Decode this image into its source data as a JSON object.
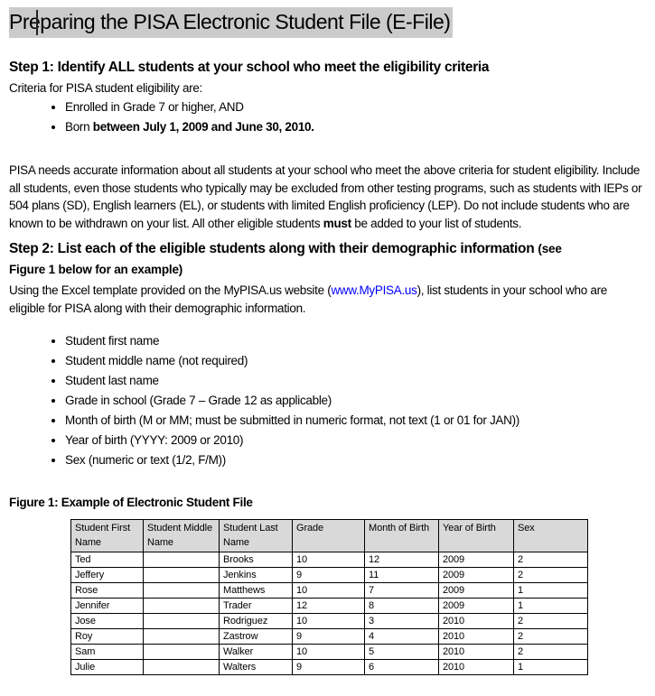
{
  "colors": {
    "selection_highlight": "#cbcbcb",
    "link": "#0000ff",
    "table_header_bg": "#d9d9d9",
    "table_border": "#000000"
  },
  "title": "Preparing the PISA Electronic Student File (E-File)",
  "step1": {
    "heading": "Step 1: Identify ALL students at your school who meet the eligibility criteria",
    "intro": "Criteria for PISA student eligibility are:",
    "bullet1": "Enrolled in Grade 7 or higher, AND",
    "bullet2_pre": "Born ",
    "bullet2_bold": "between July 1, 2009 and June 30, 2010.",
    "para_pre": "PISA needs accurate information about all students at your school who meet the above criteria for student eligibility. Include all students, even those students who typically may be excluded from other testing programs, such as students with IEPs or 504 plans (SD), English learners (EL), or students with limited English proficiency (LEP). Do not include students who are known to be withdrawn on your list. All other eligible students ",
    "para_bold": "must",
    "para_post": " be added to your list of students."
  },
  "step2": {
    "heading_main": "Step 2: List each of the eligible students along with their demographic information",
    "heading_small_line1": "(see",
    "heading_small_line2": "Figure 1 below for an example)",
    "para_pre": "Using the Excel template provided on the MyPISA.us website (",
    "link_text": "www.MyPISA.us",
    "para_post": "), list students in your school who are eligible for PISA along with their demographic information.",
    "bullets": [
      "Student first name",
      "Student middle name (not required)",
      "Student last name",
      "Grade in school (Grade 7 – Grade 12 as applicable)",
      "Month of birth (M or MM; must be submitted in numeric format, not text (1 or 01 for JAN))",
      "Year of birth (YYYY: 2009 or 2010)",
      "Sex (numeric or text (1/2, F/M))"
    ]
  },
  "figure1": {
    "caption": "Figure 1: Example of Electronic Student File",
    "table": {
      "headers": [
        "Student First Name",
        "Student Middle Name",
        "Student Last Name",
        "Grade",
        "Month of Birth",
        "Year of Birth",
        "Sex"
      ],
      "rows": [
        [
          "Ted",
          "",
          "Brooks",
          "10",
          "12",
          "2009",
          "2"
        ],
        [
          "Jeffery",
          "",
          "Jenkins",
          "9",
          "11",
          "2009",
          "2"
        ],
        [
          "Rose",
          "",
          "Matthews",
          "10",
          "7",
          "2009",
          "1"
        ],
        [
          "Jennifer",
          "",
          "Trader",
          "12",
          "8",
          "2009",
          "1"
        ],
        [
          "Jose",
          "",
          "Rodriguez",
          "10",
          "3",
          "2010",
          "2"
        ],
        [
          "Roy",
          "",
          "Zastrow",
          "9",
          "4",
          "2010",
          "2"
        ],
        [
          "Sam",
          "",
          "Walker",
          "10",
          "5",
          "2010",
          "2"
        ],
        [
          "Julie",
          "",
          "Walters",
          "9",
          "6",
          "2010",
          "1"
        ]
      ]
    }
  }
}
